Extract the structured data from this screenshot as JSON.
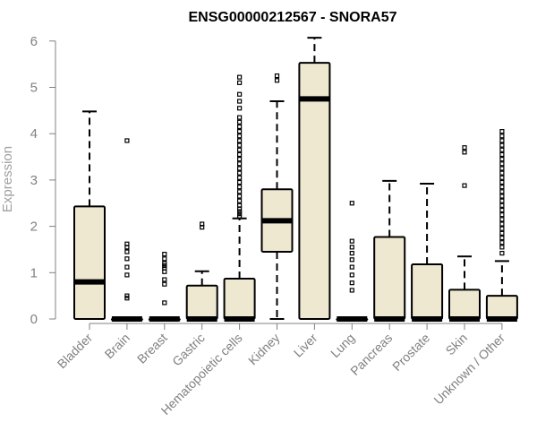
{
  "chart_data": {
    "type": "boxplot",
    "title": "ENSG00000212567 - SNORA57",
    "xlabel": "",
    "ylabel": "Expression",
    "ylim": [
      0,
      6
    ],
    "yticks": [
      0,
      1,
      2,
      3,
      4,
      5,
      6
    ],
    "grid": false,
    "legend": "none",
    "colors": {
      "box_fill": "#efe8d0",
      "stroke": "#000000",
      "axis": "#808080"
    },
    "categories": [
      "Bladder",
      "Brain",
      "Breast",
      "Gastric",
      "Hematopoietic cells",
      "Kidney",
      "Liver",
      "Lung",
      "Pancreas",
      "Prostate",
      "Skin",
      "Unknown / Other"
    ],
    "boxes": [
      {
        "name": "Bladder",
        "lower_whisker": 0,
        "q1": 0,
        "median": 0.8,
        "q3": 2.43,
        "upper_whisker": 4.48,
        "outliers": []
      },
      {
        "name": "Brain",
        "lower_whisker": 0,
        "q1": 0,
        "median": 0,
        "q3": 0,
        "upper_whisker": 0,
        "outliers": [
          3.85,
          1.62,
          1.55,
          1.45,
          1.3,
          1.12,
          0.95,
          0.5,
          0.45
        ]
      },
      {
        "name": "Breast",
        "lower_whisker": 0,
        "q1": 0,
        "median": 0,
        "q3": 0,
        "upper_whisker": 0,
        "outliers": [
          1.4,
          1.3,
          1.2,
          1.15,
          1.1,
          1.02,
          0.85,
          0.75,
          0.35
        ]
      },
      {
        "name": "Gastric",
        "lower_whisker": 0,
        "q1": 0,
        "median": 0,
        "q3": 0.72,
        "upper_whisker": 1.03,
        "outliers": [
          2.05,
          1.98
        ]
      },
      {
        "name": "Hematopoietic cells",
        "lower_whisker": 0,
        "q1": 0,
        "median": 0,
        "q3": 0.87,
        "upper_whisker": 2.17,
        "outliers": [
          5.22,
          5.1,
          4.85,
          4.7,
          4.55,
          4.35,
          4.25,
          4.15,
          4.05,
          3.95,
          3.85,
          3.75,
          3.65,
          3.55,
          3.45,
          3.35,
          3.25,
          3.15,
          3.05,
          2.95,
          2.85,
          2.75,
          2.65,
          2.55,
          2.45,
          2.38,
          2.32,
          2.27,
          2.22
        ]
      },
      {
        "name": "Kidney",
        "lower_whisker": 0,
        "q1": 1.45,
        "median": 2.12,
        "q3": 2.8,
        "upper_whisker": 4.7,
        "outliers": [
          5.25,
          5.15
        ]
      },
      {
        "name": "Liver",
        "lower_whisker": 0,
        "q1": 0,
        "median": 4.75,
        "q3": 5.53,
        "upper_whisker": 6.07,
        "outliers": []
      },
      {
        "name": "Lung",
        "lower_whisker": 0,
        "q1": 0,
        "median": 0,
        "q3": 0,
        "upper_whisker": 0,
        "outliers": [
          2.5,
          1.68,
          1.55,
          1.42,
          1.28,
          1.12,
          0.95,
          0.78,
          0.62
        ]
      },
      {
        "name": "Pancreas",
        "lower_whisker": 0,
        "q1": 0,
        "median": 0,
        "q3": 1.77,
        "upper_whisker": 2.98,
        "outliers": []
      },
      {
        "name": "Prostate",
        "lower_whisker": 0,
        "q1": 0,
        "median": 0,
        "q3": 1.18,
        "upper_whisker": 2.92,
        "outliers": []
      },
      {
        "name": "Skin",
        "lower_whisker": 0,
        "q1": 0,
        "median": 0,
        "q3": 0.63,
        "upper_whisker": 1.35,
        "outliers": [
          3.7,
          3.6,
          2.88
        ]
      },
      {
        "name": "Unknown / Other",
        "lower_whisker": 0,
        "q1": 0,
        "median": 0,
        "q3": 0.5,
        "upper_whisker": 1.25,
        "outliers": [
          4.05,
          3.95,
          3.85,
          3.75,
          3.65,
          3.55,
          3.45,
          3.35,
          3.25,
          3.15,
          3.05,
          2.95,
          2.85,
          2.75,
          2.65,
          2.55,
          2.45,
          2.35,
          2.25,
          2.15,
          2.05,
          1.95,
          1.85,
          1.75,
          1.65,
          1.55,
          1.42
        ]
      }
    ]
  }
}
